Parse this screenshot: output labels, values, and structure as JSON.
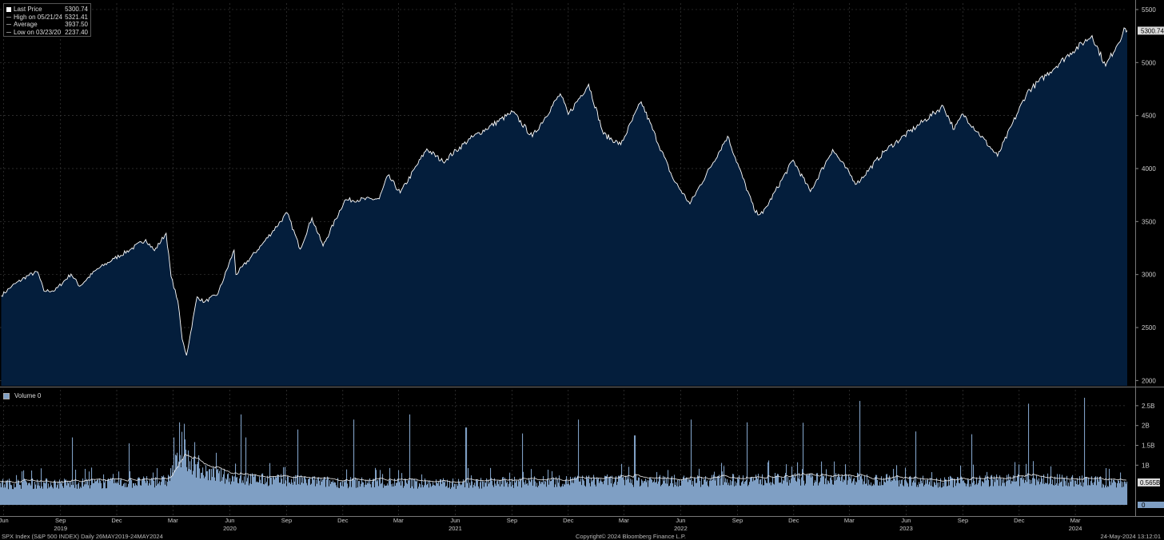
{
  "legend": {
    "last_price_label": "Last Price",
    "last_price_value": "5300.74",
    "high_label": "High on 05/21/24",
    "high_value": "5321.41",
    "average_label": "Average",
    "average_value": "3937.50",
    "low_label": "Low on 03/23/20",
    "low_value": "2237.40"
  },
  "volume_legend": "Volume 0",
  "footer": {
    "left": "SPX Index (S&P 500 INDEX)  Daily 26MAY2019-24MAY2024",
    "center": "Copyright© 2024 Bloomberg Finance L.P.",
    "right": "24-May-2024 13:12:01"
  },
  "colors": {
    "background": "#000000",
    "area_fill": "#041e3c",
    "price_line": "#ffffff",
    "volume_fill": "#7f9fc4",
    "grid": "#3a3a3a"
  },
  "chart_data": [
    {
      "type": "area",
      "series": [
        {
          "name": "Last Price",
          "values": []
        }
      ],
      "x_start": "2019-05-26",
      "x_end": "2024-05-24",
      "ylim": [
        1950,
        5560
      ],
      "yticks": [
        2000,
        2500,
        3000,
        3500,
        4000,
        4500,
        5000,
        5500
      ],
      "ytick_labels": [
        "2000",
        "2500",
        "3000",
        "3500",
        "4000",
        "4500",
        "5000",
        "5500"
      ],
      "last_value_label": "5300.74",
      "grid": true,
      "legend_position": "top-left",
      "points": [
        [
          "2019-05-28",
          2800
        ],
        [
          "2019-06-14",
          2890
        ],
        [
          "2019-07-10",
          2990
        ],
        [
          "2019-07-26",
          3025
        ],
        [
          "2019-08-05",
          2845
        ],
        [
          "2019-08-23",
          2850
        ],
        [
          "2019-09-18",
          3005
        ],
        [
          "2019-10-02",
          2890
        ],
        [
          "2019-10-28",
          3040
        ],
        [
          "2019-11-27",
          3150
        ],
        [
          "2019-12-24",
          3240
        ],
        [
          "2020-01-17",
          3330
        ],
        [
          "2020-01-31",
          3225
        ],
        [
          "2020-02-19",
          3390
        ],
        [
          "2020-02-27",
          2980
        ],
        [
          "2020-03-09",
          2750
        ],
        [
          "2020-03-16",
          2390
        ],
        [
          "2020-03-23",
          2237
        ],
        [
          "2020-04-09",
          2790
        ],
        [
          "2020-04-21",
          2740
        ],
        [
          "2020-05-13",
          2820
        ],
        [
          "2020-06-08",
          3230
        ],
        [
          "2020-06-11",
          3000
        ],
        [
          "2020-07-22",
          3275
        ],
        [
          "2020-09-02",
          3580
        ],
        [
          "2020-09-23",
          3240
        ],
        [
          "2020-10-12",
          3535
        ],
        [
          "2020-10-30",
          3270
        ],
        [
          "2020-12-04",
          3700
        ],
        [
          "2021-01-29",
          3715
        ],
        [
          "2021-02-12",
          3935
        ],
        [
          "2021-03-04",
          3770
        ],
        [
          "2021-04-16",
          4185
        ],
        [
          "2021-05-12",
          4065
        ],
        [
          "2021-06-25",
          4280
        ],
        [
          "2021-08-27",
          4510
        ],
        [
          "2021-09-02",
          4535
        ],
        [
          "2021-10-04",
          4300
        ],
        [
          "2021-11-18",
          4705
        ],
        [
          "2021-12-01",
          4510
        ],
        [
          "2022-01-03",
          4796
        ],
        [
          "2022-01-27",
          4325
        ],
        [
          "2022-02-24",
          4225
        ],
        [
          "2022-03-29",
          4630
        ],
        [
          "2022-05-20",
          3900
        ],
        [
          "2022-06-16",
          3667
        ],
        [
          "2022-08-16",
          4305
        ],
        [
          "2022-09-30",
          3585
        ],
        [
          "2022-10-12",
          3577
        ],
        [
          "2022-11-30",
          4080
        ],
        [
          "2022-12-28",
          3783
        ],
        [
          "2023-02-02",
          4180
        ],
        [
          "2023-03-13",
          3855
        ],
        [
          "2023-04-28",
          4170
        ],
        [
          "2023-07-31",
          4589
        ],
        [
          "2023-08-18",
          4370
        ],
        [
          "2023-09-01",
          4515
        ],
        [
          "2023-10-27",
          4117
        ],
        [
          "2023-12-14",
          4720
        ],
        [
          "2024-02-22",
          5090
        ],
        [
          "2024-03-28",
          5254
        ],
        [
          "2024-04-19",
          4967
        ],
        [
          "2024-05-21",
          5321
        ],
        [
          "2024-05-24",
          5300.74
        ]
      ]
    },
    {
      "type": "bar",
      "series": [
        {
          "name": "Volume",
          "values": []
        }
      ],
      "ylim": [
        0,
        2.9
      ],
      "yticks": [
        0,
        1,
        1.5,
        2,
        2.5
      ],
      "ytick_labels": [
        "0",
        "1B",
        "1.5B",
        "2B",
        "2.5B"
      ],
      "last_value_label": "0.565B",
      "grid": true,
      "volume_baseline": [
        [
          "2019-05-28",
          0.55
        ],
        [
          "2019-12-01",
          0.56
        ],
        [
          "2020-02-20",
          0.62
        ],
        [
          "2020-03-12",
          1.3
        ],
        [
          "2020-04-15",
          0.85
        ],
        [
          "2020-06-10",
          0.68
        ],
        [
          "2020-12-01",
          0.58
        ],
        [
          "2021-06-01",
          0.55
        ],
        [
          "2022-01-15",
          0.63
        ],
        [
          "2022-06-15",
          0.62
        ],
        [
          "2022-10-01",
          0.66
        ],
        [
          "2023-03-15",
          0.67
        ],
        [
          "2023-08-01",
          0.6
        ],
        [
          "2024-01-01",
          0.66
        ],
        [
          "2024-05-24",
          0.565
        ]
      ],
      "volume_spikes": [
        [
          "2019-06-21",
          0.75
        ],
        [
          "2019-09-20",
          1.7
        ],
        [
          "2019-12-20",
          1.55
        ],
        [
          "2020-03-02",
          1.7
        ],
        [
          "2020-03-20",
          1.65
        ],
        [
          "2020-06-19",
          2.28
        ],
        [
          "2020-06-26",
          1.7
        ],
        [
          "2020-09-18",
          1.9
        ],
        [
          "2020-12-18",
          2.15
        ],
        [
          "2021-03-19",
          2.28
        ],
        [
          "2021-06-18",
          1.95
        ],
        [
          "2021-09-17",
          1.8
        ],
        [
          "2021-12-17",
          2.15
        ],
        [
          "2022-03-18",
          1.75
        ],
        [
          "2022-06-17",
          2.15
        ],
        [
          "2022-09-16",
          2.08
        ],
        [
          "2022-12-16",
          2.07
        ],
        [
          "2023-03-17",
          2.62
        ],
        [
          "2023-06-16",
          1.85
        ],
        [
          "2023-09-15",
          1.78
        ],
        [
          "2023-12-15",
          2.55
        ],
        [
          "2024-03-15",
          2.7
        ]
      ]
    }
  ],
  "x_axis": {
    "months": [
      [
        "2019-06-01",
        "Jun"
      ],
      [
        "2019-09-01",
        "Sep"
      ],
      [
        "2019-12-01",
        "Dec"
      ],
      [
        "2020-03-01",
        "Mar"
      ],
      [
        "2020-06-01",
        "Jun"
      ],
      [
        "2020-09-01",
        "Sep"
      ],
      [
        "2020-12-01",
        "Dec"
      ],
      [
        "2021-03-01",
        "Mar"
      ],
      [
        "2021-06-01",
        "Jun"
      ],
      [
        "2021-09-01",
        "Sep"
      ],
      [
        "2021-12-01",
        "Dec"
      ],
      [
        "2022-03-01",
        "Mar"
      ],
      [
        "2022-06-01",
        "Jun"
      ],
      [
        "2022-09-01",
        "Sep"
      ],
      [
        "2022-12-01",
        "Dec"
      ],
      [
        "2023-03-01",
        "Mar"
      ],
      [
        "2023-06-01",
        "Jun"
      ],
      [
        "2023-09-01",
        "Sep"
      ],
      [
        "2023-12-01",
        "Dec"
      ],
      [
        "2024-03-01",
        "Mar"
      ]
    ],
    "years": [
      [
        "2019-09-01",
        "2019"
      ],
      [
        "2020-06-01",
        "2020"
      ],
      [
        "2021-06-01",
        "2021"
      ],
      [
        "2022-06-01",
        "2022"
      ],
      [
        "2023-06-01",
        "2023"
      ],
      [
        "2024-03-01",
        "2024"
      ]
    ]
  }
}
